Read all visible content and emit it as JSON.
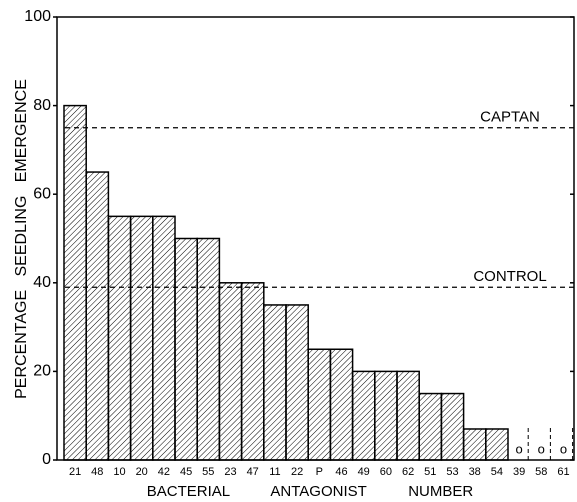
{
  "chart_data": {
    "type": "bar",
    "categories": [
      "21",
      "48",
      "10",
      "20",
      "42",
      "45",
      "55",
      "23",
      "47",
      "11",
      "22",
      "P",
      "46",
      "49",
      "60",
      "62",
      "51",
      "53",
      "38",
      "54",
      "39",
      "58",
      "61"
    ],
    "values": [
      80,
      65,
      55,
      55,
      55,
      50,
      50,
      40,
      40,
      35,
      35,
      25,
      25,
      20,
      20,
      20,
      15,
      15,
      7,
      7,
      0,
      0,
      0
    ],
    "value_labels": [
      null,
      null,
      null,
      null,
      null,
      null,
      null,
      null,
      null,
      null,
      null,
      null,
      null,
      null,
      null,
      null,
      null,
      null,
      null,
      null,
      "o",
      "o",
      "o"
    ],
    "color": "#000000",
    "ylabel": "PERCENTAGE   SEEDLING   EMERGENCE",
    "xlabel": "BACTERIAL          ANTAGONIST          NUMBER",
    "ylim": [
      0,
      100
    ],
    "yticks": [
      0,
      20,
      40,
      60,
      80,
      100
    ],
    "reference_lines": [
      {
        "label": "CAPTAN",
        "value": 75
      },
      {
        "label": "CONTROL",
        "value": 39
      }
    ]
  }
}
